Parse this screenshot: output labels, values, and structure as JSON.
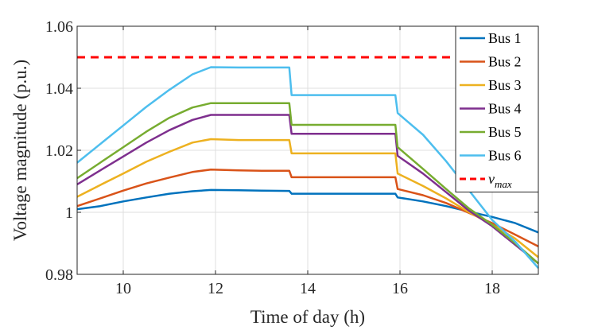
{
  "chart_data": {
    "type": "line",
    "title": "",
    "xlabel": "Time of day (h)",
    "ylabel": "Voltage magnitude (p.u.)",
    "xlim": [
      9,
      19
    ],
    "ylim": [
      0.98,
      1.06
    ],
    "xticks": [
      10,
      12,
      14,
      16,
      18
    ],
    "xtick_labels": [
      "10",
      "12",
      "14",
      "16",
      "18"
    ],
    "yticks": [
      0.98,
      1.0,
      1.02,
      1.04,
      1.06
    ],
    "ytick_labels": [
      "0.98",
      "1",
      "1.02",
      "1.04",
      "1.06"
    ],
    "grid": true,
    "legend_position": "top-right",
    "series": [
      {
        "name": "Bus 1",
        "color": "#0072BD",
        "dash": "solid",
        "x": [
          9.0,
          9.5,
          10.0,
          10.5,
          11.0,
          11.5,
          11.9,
          12.5,
          13.0,
          13.6,
          13.65,
          14.0,
          15.0,
          15.9,
          15.95,
          16.5,
          17.0,
          17.5,
          18.0,
          18.5,
          19.0
        ],
        "y": [
          1.001,
          1.002,
          1.0035,
          1.0048,
          1.006,
          1.0068,
          1.0072,
          1.0071,
          1.007,
          1.0069,
          1.006,
          1.006,
          1.006,
          1.006,
          1.0048,
          1.0035,
          1.002,
          1.0002,
          0.9985,
          0.9965,
          0.9935
        ]
      },
      {
        "name": "Bus 2",
        "color": "#D95319",
        "dash": "solid",
        "x": [
          9.0,
          9.5,
          10.0,
          10.5,
          11.0,
          11.5,
          11.9,
          12.5,
          13.0,
          13.6,
          13.65,
          14.0,
          15.0,
          15.9,
          15.95,
          16.5,
          17.0,
          17.5,
          18.0,
          18.5,
          19.0
        ],
        "y": [
          1.002,
          1.0045,
          1.007,
          1.0093,
          1.0112,
          1.013,
          1.0138,
          1.0135,
          1.0134,
          1.0134,
          1.0113,
          1.0113,
          1.0113,
          1.0113,
          1.0075,
          1.0055,
          1.003,
          0.9998,
          0.9965,
          0.9928,
          0.989
        ]
      },
      {
        "name": "Bus 3",
        "color": "#EDB120",
        "dash": "solid",
        "x": [
          9.0,
          9.5,
          10.0,
          10.5,
          11.0,
          11.5,
          11.9,
          12.5,
          13.0,
          13.6,
          13.65,
          14.0,
          15.0,
          15.9,
          15.95,
          16.5,
          17.0,
          17.5,
          18.0,
          18.5,
          19.0
        ],
        "y": [
          1.005,
          1.0088,
          1.0125,
          1.0163,
          1.0195,
          1.0225,
          1.0236,
          1.0233,
          1.0233,
          1.0233,
          1.019,
          1.019,
          1.019,
          1.019,
          1.0125,
          1.0085,
          1.0045,
          1.0,
          0.996,
          0.9915,
          0.9855
        ]
      },
      {
        "name": "Bus 4",
        "color": "#7E2F8E",
        "dash": "solid",
        "x": [
          9.0,
          9.5,
          10.0,
          10.5,
          11.0,
          11.5,
          11.9,
          12.5,
          13.0,
          13.6,
          13.65,
          14.0,
          15.0,
          15.9,
          15.95,
          16.5,
          17.0,
          17.5,
          18.0,
          18.5,
          19.0
        ],
        "y": [
          1.009,
          1.0135,
          1.018,
          1.0225,
          1.0265,
          1.0298,
          1.0314,
          1.0314,
          1.0314,
          1.0314,
          1.0253,
          1.0253,
          1.0253,
          1.0253,
          1.0182,
          1.0125,
          1.0065,
          1.0005,
          0.9955,
          0.9895,
          0.9835
        ]
      },
      {
        "name": "Bus 5",
        "color": "#77AC30",
        "dash": "solid",
        "x": [
          9.0,
          9.5,
          10.0,
          10.5,
          11.0,
          11.5,
          11.9,
          12.5,
          13.0,
          13.6,
          13.65,
          14.0,
          15.0,
          15.9,
          15.95,
          16.5,
          17.0,
          17.5,
          18.0,
          18.5,
          19.0
        ],
        "y": [
          1.011,
          1.016,
          1.021,
          1.026,
          1.0305,
          1.0338,
          1.0352,
          1.0352,
          1.0352,
          1.0352,
          1.0282,
          1.0282,
          1.0282,
          1.0282,
          1.021,
          1.014,
          1.0075,
          1.0012,
          0.996,
          0.99,
          0.9835
        ]
      },
      {
        "name": "Bus 6",
        "color": "#4DBEEE",
        "dash": "solid",
        "x": [
          9.0,
          9.5,
          10.0,
          10.5,
          11.0,
          11.5,
          11.9,
          12.5,
          13.0,
          13.6,
          13.65,
          14.0,
          15.0,
          15.9,
          15.95,
          16.5,
          17.0,
          17.5,
          18.0,
          18.5,
          19.0
        ],
        "y": [
          1.016,
          1.022,
          1.028,
          1.034,
          1.0395,
          1.0445,
          1.0468,
          1.0467,
          1.0467,
          1.0467,
          1.0378,
          1.0378,
          1.0378,
          1.0378,
          1.032,
          1.025,
          1.0165,
          1.007,
          0.9975,
          0.9905,
          0.982
        ]
      },
      {
        "name": "v_max",
        "label_base": "v",
        "label_sub": "max",
        "color": "#FF0000",
        "dash": "dashed",
        "x": [
          9.0,
          17.3
        ],
        "y": [
          1.05,
          1.05
        ]
      }
    ]
  }
}
